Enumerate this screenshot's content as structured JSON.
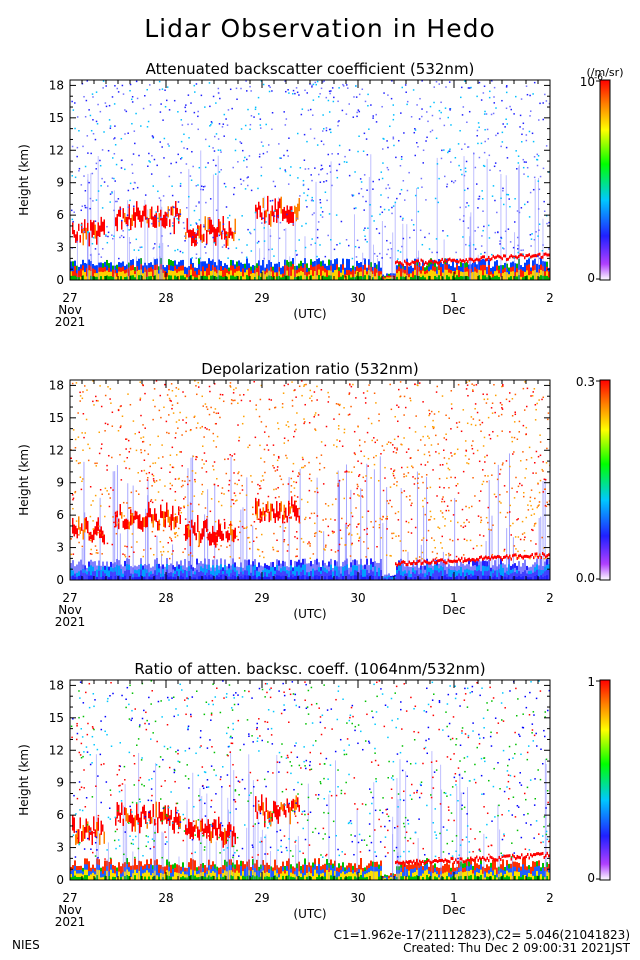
{
  "main_title": "Lidar Observation in Hedo",
  "footer": {
    "nies": "NIES",
    "constants": "C1=1.962e-17(21112823),C2= 5.046(21041823)",
    "created": "Created: Thu Dec  2 09:00:31 2021JST"
  },
  "colors": {
    "colorbar": [
      "#ffffff",
      "#7b00ff",
      "#0000ff",
      "#00c8ff",
      "#00ff00",
      "#ffff00",
      "#ff8000",
      "#ff0000"
    ]
  },
  "chart_data": [
    {
      "type": "heatmap",
      "title": "Attenuated backscatter coefficient (532nm)",
      "ylabel": "Height (km)",
      "xlabel": "(UTC)",
      "x_ticks": [
        "27",
        "28",
        "29",
        "30",
        "1",
        "2"
      ],
      "x_subticks": [
        {
          "text": "Nov",
          "under": "27"
        },
        {
          "text": "2021",
          "under": "27"
        },
        {
          "text": "Dec",
          "under": "1"
        }
      ],
      "y_ticks": [
        "0",
        "3",
        "6",
        "9",
        "12",
        "15",
        "18"
      ],
      "ylim": [
        0,
        18.5
      ],
      "colorbar": {
        "min": "0",
        "max": "10",
        "max_exponent": "-6",
        "unit": "(/m/sr)"
      }
    },
    {
      "type": "heatmap",
      "title": "Depolarization ratio (532nm)",
      "ylabel": "Height (km)",
      "xlabel": "(UTC)",
      "x_ticks": [
        "27",
        "28",
        "29",
        "30",
        "1",
        "2"
      ],
      "x_subticks": [
        {
          "text": "Nov",
          "under": "27"
        },
        {
          "text": "2021",
          "under": "27"
        },
        {
          "text": "Dec",
          "under": "1"
        }
      ],
      "y_ticks": [
        "0",
        "3",
        "6",
        "9",
        "12",
        "15",
        "18"
      ],
      "ylim": [
        0,
        18.5
      ],
      "colorbar": {
        "min": "0.0",
        "max": "0.3"
      }
    },
    {
      "type": "heatmap",
      "title": "Ratio of atten. backsc. coeff. (1064nm/532nm)",
      "ylabel": "Height (km)",
      "xlabel": "(UTC)",
      "x_ticks": [
        "27",
        "28",
        "29",
        "30",
        "1",
        "2"
      ],
      "x_subticks": [
        {
          "text": "Nov",
          "under": "27"
        },
        {
          "text": "2021",
          "under": "27"
        },
        {
          "text": "Dec",
          "under": "1"
        }
      ],
      "y_ticks": [
        "0",
        "3",
        "6",
        "9",
        "12",
        "15",
        "18"
      ],
      "ylim": [
        0,
        18.5
      ],
      "colorbar": {
        "min": "0",
        "max": "1"
      }
    }
  ]
}
